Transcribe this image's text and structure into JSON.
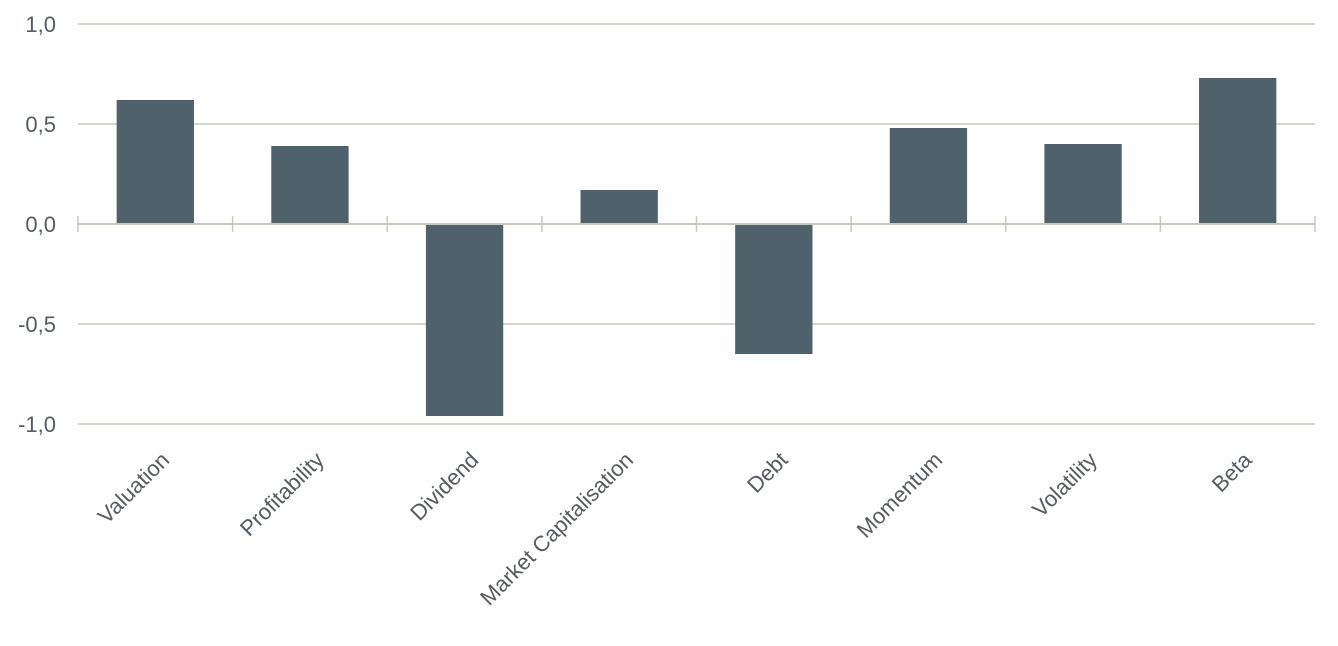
{
  "chart_data": {
    "type": "bar",
    "title": "",
    "xlabel": "",
    "ylabel": "",
    "categories": [
      "Valuation",
      "Profitability",
      "Dividend",
      "Market Capitalisation",
      "Debt",
      "Momentum",
      "Volatility",
      "Beta"
    ],
    "values": [
      0.62,
      0.39,
      -0.96,
      0.17,
      -0.65,
      0.48,
      0.4,
      0.73
    ],
    "ylim": [
      -1.0,
      1.0
    ],
    "yticks": [
      1.0,
      0.5,
      0.0,
      -0.5,
      -1.0
    ],
    "ytick_labels": [
      "1,0",
      "0,5",
      "0,0",
      "-0,5",
      "-1,0"
    ],
    "grid": true,
    "legend": "none",
    "colors": {
      "bar": "#4f616b",
      "grid": "#c8c8bf",
      "text": "#555b60"
    }
  }
}
